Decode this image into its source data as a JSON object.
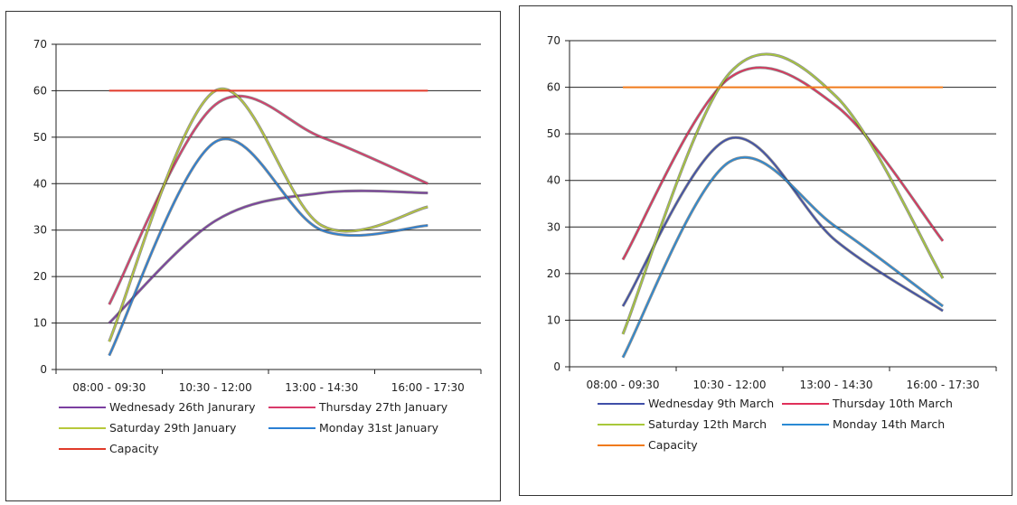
{
  "chart_data": [
    {
      "type": "line",
      "title": "",
      "xlabel": "",
      "ylabel": "",
      "categories": [
        "08:00 - 09:30",
        "10:30 - 12:00",
        "13:00 - 14:30",
        "16:00 - 17:30"
      ],
      "ylim": [
        0,
        70
      ],
      "yticks": [
        0,
        10,
        20,
        30,
        40,
        50,
        60,
        70
      ],
      "grid": true,
      "legend_position": "bottom",
      "series": [
        {
          "name": "Wednesady 26th Janurary",
          "color": "#7b3fa0",
          "values": [
            10,
            32,
            38,
            38
          ]
        },
        {
          "name": "Thursday 27th January",
          "color": "#d93a6a",
          "values": [
            14,
            57,
            50,
            40
          ]
        },
        {
          "name": "Saturday 29th January",
          "color": "#b7c83a",
          "values": [
            6,
            60,
            31,
            35
          ]
        },
        {
          "name": "Monday 31st January",
          "color": "#2a7fd4",
          "values": [
            3,
            49,
            30,
            31
          ]
        },
        {
          "name": "Capacity",
          "color": "#e03a2a",
          "values": [
            60,
            60,
            60,
            60
          ]
        }
      ]
    },
    {
      "type": "line",
      "title": "",
      "xlabel": "",
      "ylabel": "",
      "categories": [
        "08:00 - 09:30",
        "10:30 - 12:00",
        "13:00 - 14:30",
        "16:00 - 17:30"
      ],
      "ylim": [
        0,
        70
      ],
      "yticks": [
        0,
        10,
        20,
        30,
        40,
        50,
        60,
        70
      ],
      "grid": true,
      "legend_position": "bottom",
      "series": [
        {
          "name": "Wednesday 9th March",
          "color": "#3f4fa8",
          "values": [
            13,
            49,
            27,
            12
          ]
        },
        {
          "name": "Thursday 10th March",
          "color": "#e0305a",
          "values": [
            23,
            62,
            56,
            27
          ]
        },
        {
          "name": "Saturday 12th March",
          "color": "#a8c83a",
          "values": [
            7,
            63,
            58,
            19
          ]
        },
        {
          "name": "Monday 14th March",
          "color": "#2a8ad4",
          "values": [
            2,
            44,
            30,
            13
          ]
        },
        {
          "name": "Capacity",
          "color": "#f07a1a",
          "values": [
            60,
            60,
            60,
            60
          ]
        }
      ]
    }
  ]
}
